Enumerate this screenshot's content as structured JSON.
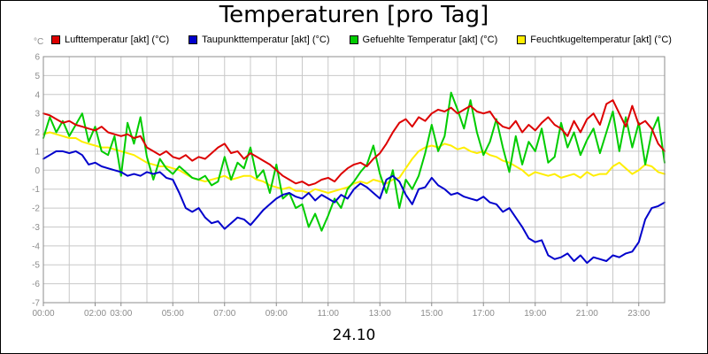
{
  "chart_data": {
    "type": "line",
    "title": "Temperaturen [pro Tag]",
    "xlabel": "24.10",
    "ylabel": "°C",
    "ylim": [
      -7,
      6
    ],
    "xlim": [
      0,
      24
    ],
    "grid": true,
    "legend_position": "top",
    "x_ticks": [
      {
        "value": 0,
        "label": "00:00"
      },
      {
        "value": 2,
        "label": "02:00"
      },
      {
        "value": 3,
        "label": "03:00"
      },
      {
        "value": 5,
        "label": "05:00"
      },
      {
        "value": 7,
        "label": "07:00"
      },
      {
        "value": 9,
        "label": "09:00"
      },
      {
        "value": 11,
        "label": "11:00"
      },
      {
        "value": 13,
        "label": "13:00"
      },
      {
        "value": 15,
        "label": "15:00"
      },
      {
        "value": 17,
        "label": "17:00"
      },
      {
        "value": 19,
        "label": "19:00"
      },
      {
        "value": 21,
        "label": "21:00"
      },
      {
        "value": 23,
        "label": "23:00"
      }
    ],
    "y_ticks": [
      6,
      5,
      4,
      3,
      2,
      1,
      0,
      -1,
      -2,
      -3,
      -4,
      -5,
      -6,
      -7
    ],
    "series": [
      {
        "name": "Lufttemperatur [akt] (°C)",
        "color": "#dd0000",
        "x": [
          0,
          0.25,
          0.5,
          0.75,
          1,
          1.25,
          1.5,
          1.75,
          2,
          2.25,
          2.5,
          2.75,
          3,
          3.25,
          3.5,
          3.75,
          4,
          4.25,
          4.5,
          4.75,
          5,
          5.25,
          5.5,
          5.75,
          6,
          6.25,
          6.5,
          6.75,
          7,
          7.25,
          7.5,
          7.75,
          8,
          8.25,
          8.5,
          8.75,
          9,
          9.25,
          9.5,
          9.75,
          10,
          10.25,
          10.5,
          10.75,
          11,
          11.25,
          11.5,
          11.75,
          12,
          12.25,
          12.5,
          12.75,
          13,
          13.25,
          13.5,
          13.75,
          14,
          14.25,
          14.5,
          14.75,
          15,
          15.25,
          15.5,
          15.75,
          16,
          16.25,
          16.5,
          16.75,
          17,
          17.25,
          17.5,
          17.75,
          18,
          18.25,
          18.5,
          18.75,
          19,
          19.25,
          19.5,
          19.75,
          20,
          20.25,
          20.5,
          20.75,
          21,
          21.25,
          21.5,
          21.75,
          22,
          22.25,
          22.5,
          22.75,
          23,
          23.25,
          23.5,
          23.75,
          24
        ],
        "values": [
          3.0,
          2.9,
          2.7,
          2.5,
          2.6,
          2.4,
          2.3,
          2.2,
          2.1,
          2.3,
          2.0,
          1.9,
          1.8,
          1.9,
          1.7,
          1.8,
          1.2,
          1.0,
          0.8,
          1.0,
          0.7,
          0.6,
          0.8,
          0.5,
          0.7,
          0.6,
          0.9,
          1.2,
          1.4,
          0.9,
          1.0,
          0.6,
          0.9,
          0.7,
          0.5,
          0.3,
          0.0,
          -0.3,
          -0.5,
          -0.7,
          -0.6,
          -0.8,
          -0.7,
          -0.5,
          -0.4,
          -0.6,
          -0.2,
          0.1,
          0.3,
          0.4,
          0.2,
          0.6,
          0.9,
          1.4,
          2.0,
          2.5,
          2.7,
          2.3,
          2.8,
          2.6,
          3.0,
          3.2,
          3.1,
          3.3,
          3.0,
          3.2,
          3.4,
          3.1,
          3.0,
          3.1,
          2.6,
          2.3,
          2.2,
          2.6,
          2.0,
          2.4,
          2.1,
          2.5,
          2.8,
          2.4,
          2.2,
          1.8,
          2.6,
          2.0,
          2.7,
          3.0,
          2.4,
          3.5,
          3.7,
          3.0,
          2.3,
          3.4,
          2.4,
          2.6,
          2.2,
          1.4,
          1.0
        ]
      },
      {
        "name": "Taupunkttemperatur [akt] (°C)",
        "color": "#0000cc",
        "x": [
          0,
          0.25,
          0.5,
          0.75,
          1,
          1.25,
          1.5,
          1.75,
          2,
          2.25,
          2.5,
          2.75,
          3,
          3.25,
          3.5,
          3.75,
          4,
          4.25,
          4.5,
          4.75,
          5,
          5.25,
          5.5,
          5.75,
          6,
          6.25,
          6.5,
          6.75,
          7,
          7.25,
          7.5,
          7.75,
          8,
          8.25,
          8.5,
          8.75,
          9,
          9.25,
          9.5,
          9.75,
          10,
          10.25,
          10.5,
          10.75,
          11,
          11.25,
          11.5,
          11.75,
          12,
          12.25,
          12.5,
          12.75,
          13,
          13.25,
          13.5,
          13.75,
          14,
          14.25,
          14.5,
          14.75,
          15,
          15.25,
          15.5,
          15.75,
          16,
          16.25,
          16.5,
          16.75,
          17,
          17.25,
          17.5,
          17.75,
          18,
          18.25,
          18.5,
          18.75,
          19,
          19.25,
          19.5,
          19.75,
          20,
          20.25,
          20.5,
          20.75,
          21,
          21.25,
          21.5,
          21.75,
          22,
          22.25,
          22.5,
          22.75,
          23,
          23.25,
          23.5,
          23.75,
          24
        ],
        "values": [
          0.6,
          0.8,
          1.0,
          1.0,
          0.9,
          1.0,
          0.8,
          0.3,
          0.4,
          0.2,
          0.1,
          0.0,
          -0.1,
          -0.3,
          -0.2,
          -0.3,
          -0.1,
          -0.2,
          -0.1,
          -0.4,
          -0.5,
          -1.2,
          -2.0,
          -2.2,
          -2.0,
          -2.5,
          -2.8,
          -2.7,
          -3.1,
          -2.8,
          -2.5,
          -2.6,
          -2.9,
          -2.5,
          -2.1,
          -1.8,
          -1.5,
          -1.3,
          -1.2,
          -1.4,
          -1.5,
          -1.2,
          -1.6,
          -1.3,
          -1.5,
          -1.7,
          -1.3,
          -1.5,
          -1.0,
          -0.7,
          -0.9,
          -1.2,
          -1.5,
          -0.5,
          -0.3,
          -0.6,
          -1.3,
          -1.8,
          -1.0,
          -0.9,
          -0.4,
          -0.8,
          -1.0,
          -1.3,
          -1.2,
          -1.4,
          -1.5,
          -1.6,
          -1.4,
          -1.7,
          -1.8,
          -2.2,
          -2.0,
          -2.5,
          -3.0,
          -3.6,
          -3.8,
          -3.7,
          -4.5,
          -4.7,
          -4.6,
          -4.4,
          -4.8,
          -4.5,
          -4.9,
          -4.6,
          -4.7,
          -4.8,
          -4.5,
          -4.6,
          -4.4,
          -4.3,
          -3.8,
          -2.6,
          -2.0,
          -1.9,
          -1.7
        ]
      },
      {
        "name": "Gefuehlte Temperatur [akt] (°C)",
        "color": "#00cc00",
        "x": [
          0,
          0.25,
          0.5,
          0.75,
          1,
          1.25,
          1.5,
          1.75,
          2,
          2.25,
          2.5,
          2.75,
          3,
          3.25,
          3.5,
          3.75,
          4,
          4.25,
          4.5,
          4.75,
          5,
          5.25,
          5.5,
          5.75,
          6,
          6.25,
          6.5,
          6.75,
          7,
          7.25,
          7.5,
          7.75,
          8,
          8.25,
          8.5,
          8.75,
          9,
          9.25,
          9.5,
          9.75,
          10,
          10.25,
          10.5,
          10.75,
          11,
          11.25,
          11.5,
          11.75,
          12,
          12.25,
          12.5,
          12.75,
          13,
          13.25,
          13.5,
          13.75,
          14,
          14.25,
          14.5,
          14.75,
          15,
          15.25,
          15.5,
          15.75,
          16,
          16.25,
          16.5,
          16.75,
          17,
          17.25,
          17.5,
          17.75,
          18,
          18.25,
          18.5,
          18.75,
          19,
          19.25,
          19.5,
          19.75,
          20,
          20.25,
          20.5,
          20.75,
          21,
          21.25,
          21.5,
          21.75,
          22,
          22.25,
          22.5,
          22.75,
          23,
          23.25,
          23.5,
          23.75,
          24
        ],
        "values": [
          1.7,
          2.8,
          2.0,
          2.6,
          1.8,
          2.4,
          3.0,
          1.5,
          2.3,
          1.0,
          0.8,
          1.8,
          -0.3,
          2.5,
          1.4,
          2.8,
          0.7,
          -0.5,
          0.6,
          0.1,
          -0.2,
          0.2,
          -0.1,
          -0.4,
          -0.5,
          -0.3,
          -0.8,
          -0.6,
          0.7,
          -0.5,
          0.4,
          0.1,
          1.2,
          -0.4,
          0.0,
          -1.2,
          0.3,
          -1.5,
          -1.2,
          -2.0,
          -1.8,
          -3.0,
          -2.3,
          -3.2,
          -2.4,
          -1.5,
          -2.0,
          -1.0,
          -0.6,
          -0.1,
          0.3,
          1.3,
          -0.2,
          -1.2,
          0.0,
          -2.0,
          -0.5,
          -1.0,
          -0.3,
          0.9,
          2.4,
          1.0,
          1.8,
          4.1,
          3.2,
          2.2,
          3.7,
          2.0,
          0.8,
          1.5,
          2.7,
          1.2,
          -0.1,
          1.8,
          0.3,
          1.5,
          1.0,
          2.2,
          0.4,
          0.7,
          2.5,
          1.2,
          2.0,
          0.8,
          1.6,
          2.2,
          0.9,
          2.0,
          3.1,
          1.0,
          2.8,
          1.2,
          2.5,
          0.3,
          2.0,
          2.8,
          0.4
        ]
      },
      {
        "name": "Feuchtkugeltemperatur [akt] (°C)",
        "color": "#ffee00",
        "x": [
          0,
          0.25,
          0.5,
          0.75,
          1,
          1.25,
          1.5,
          1.75,
          2,
          2.25,
          2.5,
          2.75,
          3,
          3.25,
          3.5,
          3.75,
          4,
          4.25,
          4.5,
          4.75,
          5,
          5.25,
          5.5,
          5.75,
          6,
          6.25,
          6.5,
          6.75,
          7,
          7.25,
          7.5,
          7.75,
          8,
          8.25,
          8.5,
          8.75,
          9,
          9.25,
          9.5,
          9.75,
          10,
          10.25,
          10.5,
          10.75,
          11,
          11.25,
          11.5,
          11.75,
          12,
          12.25,
          12.5,
          12.75,
          13,
          13.25,
          13.5,
          13.75,
          14,
          14.25,
          14.5,
          14.75,
          15,
          15.25,
          15.5,
          15.75,
          16,
          16.25,
          16.5,
          16.75,
          17,
          17.25,
          17.5,
          17.75,
          18,
          18.25,
          18.5,
          18.75,
          19,
          19.25,
          19.5,
          19.75,
          20,
          20.25,
          20.5,
          20.75,
          21,
          21.25,
          21.5,
          21.75,
          22,
          22.25,
          22.5,
          22.75,
          23,
          23.25,
          23.5,
          23.75,
          24
        ],
        "values": [
          1.9,
          2.0,
          1.9,
          1.8,
          1.7,
          1.7,
          1.5,
          1.4,
          1.3,
          1.2,
          1.2,
          1.1,
          1.0,
          0.9,
          0.8,
          0.6,
          0.4,
          0.3,
          0.2,
          0.2,
          0.1,
          0.0,
          -0.2,
          -0.4,
          -0.5,
          -0.6,
          -0.5,
          -0.4,
          -0.3,
          -0.5,
          -0.4,
          -0.3,
          -0.3,
          -0.5,
          -0.6,
          -0.8,
          -0.9,
          -1.0,
          -0.9,
          -1.1,
          -1.1,
          -1.2,
          -1.0,
          -1.1,
          -1.2,
          -1.1,
          -1.0,
          -0.9,
          -0.7,
          -0.6,
          -0.7,
          -0.5,
          -0.6,
          -0.7,
          -0.5,
          -0.4,
          0.1,
          0.6,
          1.0,
          1.2,
          1.3,
          1.2,
          1.4,
          1.3,
          1.1,
          1.2,
          1.0,
          0.9,
          1.0,
          0.8,
          0.7,
          0.5,
          0.4,
          0.2,
          0.0,
          -0.3,
          -0.1,
          -0.2,
          -0.3,
          -0.2,
          -0.4,
          -0.3,
          -0.2,
          -0.4,
          -0.1,
          -0.3,
          -0.2,
          -0.2,
          0.2,
          0.4,
          0.1,
          -0.2,
          0.0,
          0.3,
          0.2,
          -0.1,
          -0.2
        ]
      }
    ]
  }
}
